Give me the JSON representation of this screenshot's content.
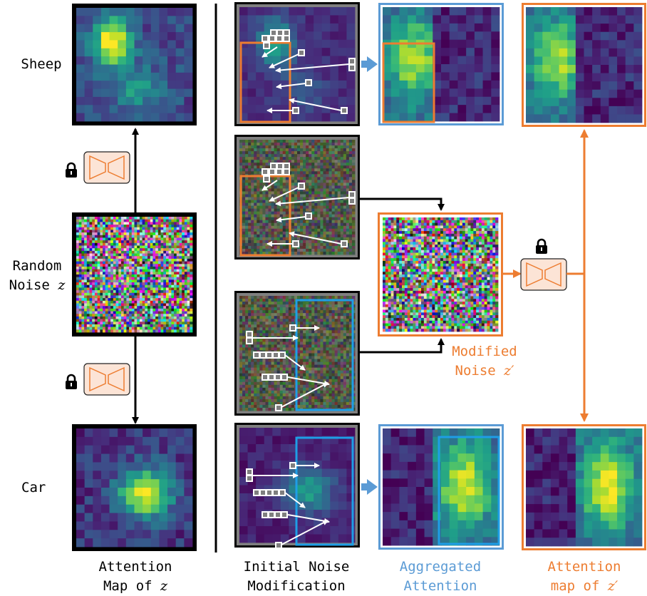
{
  "rows": {
    "sheep": "Sheep",
    "noise_line1": "Random",
    "noise_line2": "Noise",
    "noise_var": "z",
    "car": "Car"
  },
  "captions": {
    "col1_line1": "Attention",
    "col1_line2": "Map of",
    "col1_var": "z",
    "col2_line1": "Initial Noise",
    "col2_line2": "Modification",
    "col3_line1": "Aggregated",
    "col3_line2": "Attention",
    "col4_line1": "Attention",
    "col4_line2": "map of",
    "col4_var": "z′"
  },
  "modified_noise": {
    "line1": "Modified",
    "line2": "Noise",
    "var": "z′"
  },
  "icons": {
    "lock": "lock-icon",
    "unet": "unet-icon"
  },
  "colors": {
    "orange": "#ed7d31",
    "blue": "#5b9bd5",
    "bright_blue": "#1e9ee6",
    "black": "#000000",
    "unet_fill": "#fce4d6",
    "frame_gray": "#7f7f7f"
  }
}
